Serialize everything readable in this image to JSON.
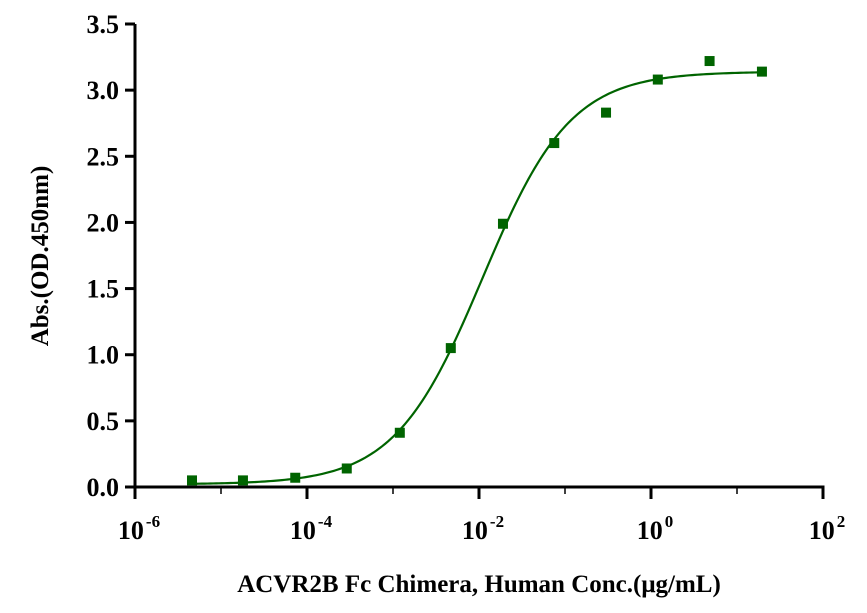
{
  "chart_data": {
    "type": "scatter",
    "title": "",
    "xlabel": "ACVR2B Fc Chimera, Human Conc.(μg/mL)",
    "ylabel": "Abs.(OD.450nm)",
    "x_scale": "log",
    "xlim": [
      1e-06,
      100
    ],
    "ylim": [
      0,
      3.5
    ],
    "x_ticks": [
      {
        "base": "10",
        "exp": "-6",
        "value": 1e-06
      },
      {
        "base": "10",
        "exp": "-4",
        "value": 0.0001
      },
      {
        "base": "10",
        "exp": "-2",
        "value": 0.01
      },
      {
        "base": "10",
        "exp": "0",
        "value": 1
      },
      {
        "base": "10",
        "exp": "2",
        "value": 100
      }
    ],
    "y_ticks": [
      "0.0",
      "0.5",
      "1.0",
      "1.5",
      "2.0",
      "2.5",
      "3.0",
      "3.5"
    ],
    "grid": false,
    "legend": "none",
    "series": [
      {
        "color": "#006400",
        "marker": "square",
        "x": [
          4.6e-06,
          1.8e-05,
          7.3e-05,
          0.00029,
          0.0012,
          0.0047,
          0.019,
          0.075,
          0.3,
          1.2,
          4.8,
          19.5
        ],
        "y": [
          0.05,
          0.05,
          0.07,
          0.14,
          0.41,
          1.05,
          1.99,
          2.6,
          2.83,
          3.08,
          3.22,
          3.14
        ]
      }
    ],
    "fit": {
      "type": "4PL",
      "color": "#006400",
      "bottom": 0.02,
      "top": 3.14,
      "ec50": 0.011,
      "hill": 0.85
    }
  }
}
